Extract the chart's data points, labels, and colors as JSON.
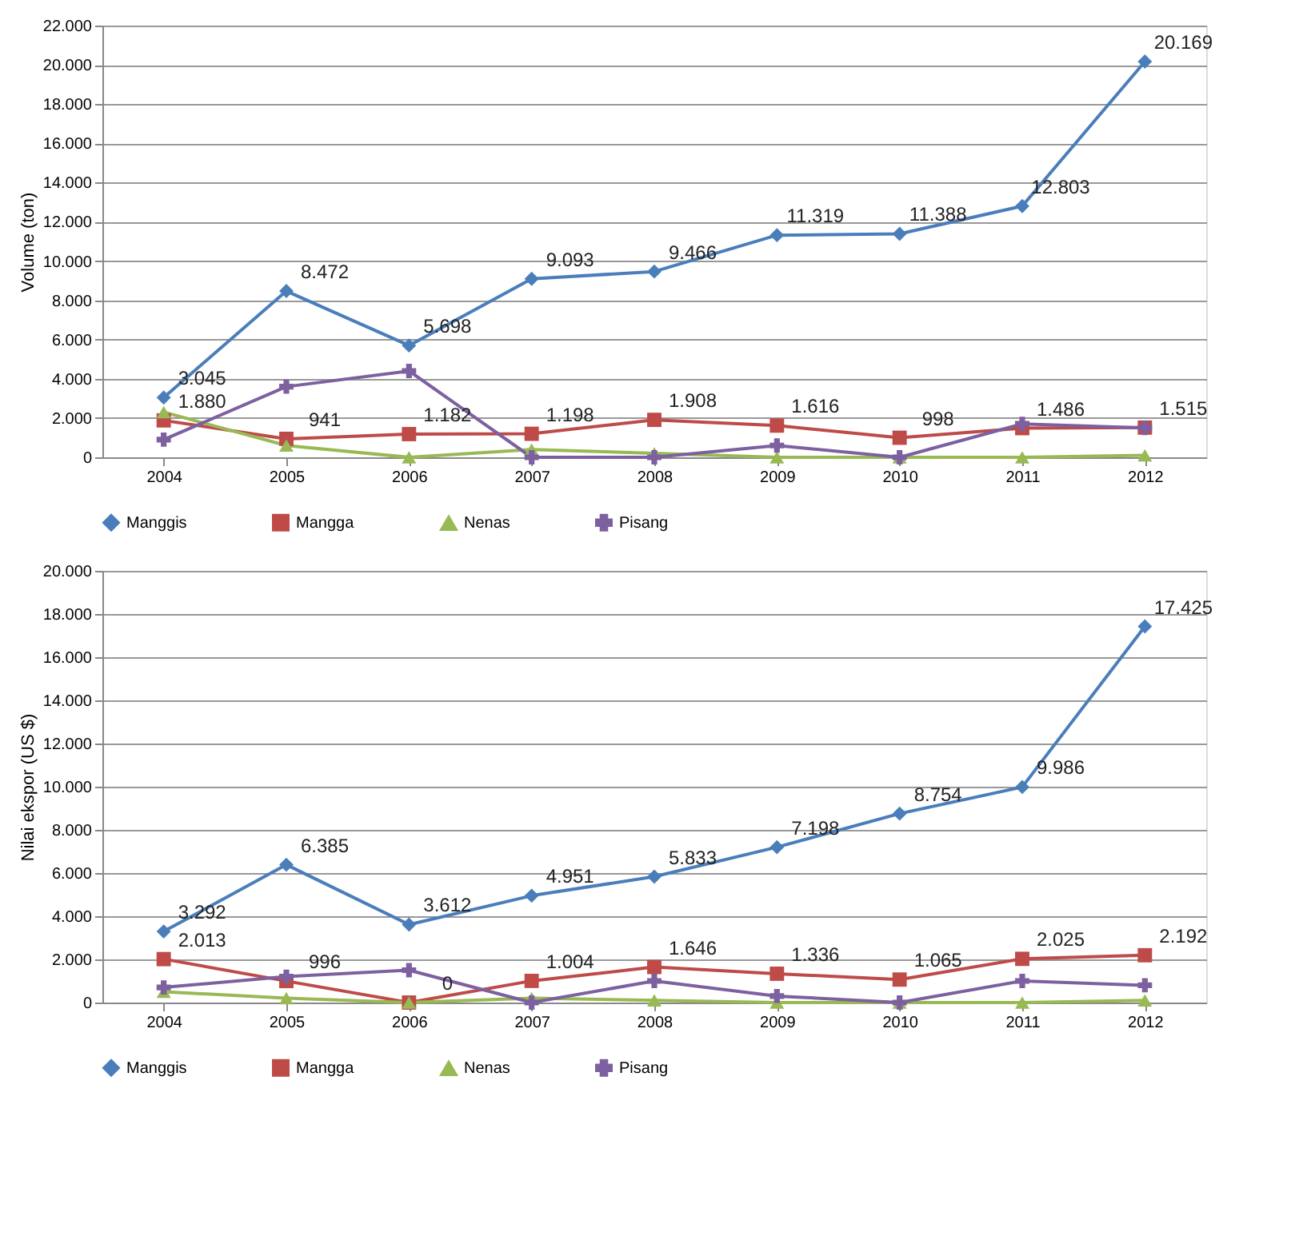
{
  "chart_data": [
    {
      "type": "line",
      "ylabel": "Volume (ton)",
      "categories": [
        "2004",
        "2005",
        "2006",
        "2007",
        "2008",
        "2009",
        "2010",
        "2011",
        "2012"
      ],
      "ylim": [
        0,
        22000
      ],
      "yticks": [
        {
          "value": 0,
          "label": "0"
        },
        {
          "value": 2000,
          "label": "2.000"
        },
        {
          "value": 4000,
          "label": "4.000"
        },
        {
          "value": 6000,
          "label": "6.000"
        },
        {
          "value": 8000,
          "label": "8.000"
        },
        {
          "value": 10000,
          "label": "10.000"
        },
        {
          "value": 12000,
          "label": "12.000"
        },
        {
          "value": 14000,
          "label": "14.000"
        },
        {
          "value": 16000,
          "label": "16.000"
        },
        {
          "value": 18000,
          "label": "18.000"
        },
        {
          "value": 20000,
          "label": "20.000"
        },
        {
          "value": 22000,
          "label": "22.000"
        }
      ],
      "grid": "y",
      "legend": "bottom",
      "line_style": "solid",
      "series": [
        {
          "name": "Manggis",
          "color": "#4a7ebb",
          "marker": "diamond",
          "values": [
            3045,
            8472,
            5698,
            9093,
            9466,
            11319,
            11388,
            12803,
            20169
          ],
          "value_labels": [
            "3.045",
            "8.472",
            "5.698",
            "9.093",
            "9.466",
            "11.319",
            "11.388",
            "12.803",
            "20.169"
          ]
        },
        {
          "name": "Mangga",
          "color": "#be4b48",
          "marker": "square",
          "values": [
            1880,
            941,
            1182,
            1198,
            1908,
            1616,
            998,
            1486,
            1515
          ],
          "value_labels": [
            "1.880",
            "941",
            "1.182",
            "1.198",
            "1.908",
            "1.616",
            "998",
            "1.486",
            "1.515"
          ]
        },
        {
          "name": "Nenas",
          "color": "#98b954",
          "marker": "triangle",
          "values": [
            2300,
            600,
            0,
            400,
            200,
            0,
            0,
            0,
            100
          ]
        },
        {
          "name": "Pisang",
          "color": "#7d60a0",
          "marker": "cross",
          "values": [
            900,
            3600,
            4400,
            0,
            0,
            600,
            0,
            1700,
            1500
          ]
        }
      ]
    },
    {
      "type": "line",
      "ylabel": "Nilai ekspor (US $)",
      "categories": [
        "2004",
        "2005",
        "2006",
        "2007",
        "2008",
        "2009",
        "2010",
        "2011",
        "2012"
      ],
      "ylim": [
        0,
        20000
      ],
      "yticks": [
        {
          "value": 0,
          "label": "0"
        },
        {
          "value": 2000,
          "label": "2.000"
        },
        {
          "value": 4000,
          "label": "4.000"
        },
        {
          "value": 6000,
          "label": "6.000"
        },
        {
          "value": 8000,
          "label": "8.000"
        },
        {
          "value": 10000,
          "label": "10.000"
        },
        {
          "value": 12000,
          "label": "12.000"
        },
        {
          "value": 14000,
          "label": "14.000"
        },
        {
          "value": 16000,
          "label": "16.000"
        },
        {
          "value": 18000,
          "label": "18.000"
        },
        {
          "value": 20000,
          "label": "20.000"
        }
      ],
      "grid": "y",
      "legend": "bottom",
      "line_style": "solid",
      "series": [
        {
          "name": "Manggis",
          "color": "#4a7ebb",
          "marker": "diamond",
          "values": [
            3292,
            6385,
            3612,
            4951,
            5833,
            7198,
            8754,
            9986,
            17425
          ],
          "value_labels": [
            "3.292",
            "6.385",
            "3.612",
            "4.951",
            "5.833",
            "7.198",
            "8.754",
            "9.986",
            "17.425"
          ]
        },
        {
          "name": "Mangga",
          "color": "#be4b48",
          "marker": "square",
          "values": [
            2013,
            996,
            0,
            1004,
            1646,
            1336,
            1065,
            2025,
            2192
          ],
          "value_labels": [
            "2.013",
            "996",
            "0",
            "1.004",
            "1.646",
            "1.336",
            "1.065",
            "2.025",
            "2.192"
          ]
        },
        {
          "name": "Nenas",
          "color": "#98b954",
          "marker": "triangle",
          "values": [
            500,
            200,
            0,
            200,
            100,
            0,
            0,
            0,
            100
          ]
        },
        {
          "name": "Pisang",
          "color": "#7d60a0",
          "marker": "cross",
          "values": [
            700,
            1200,
            1500,
            0,
            1000,
            300,
            0,
            1000,
            800
          ]
        }
      ]
    }
  ]
}
